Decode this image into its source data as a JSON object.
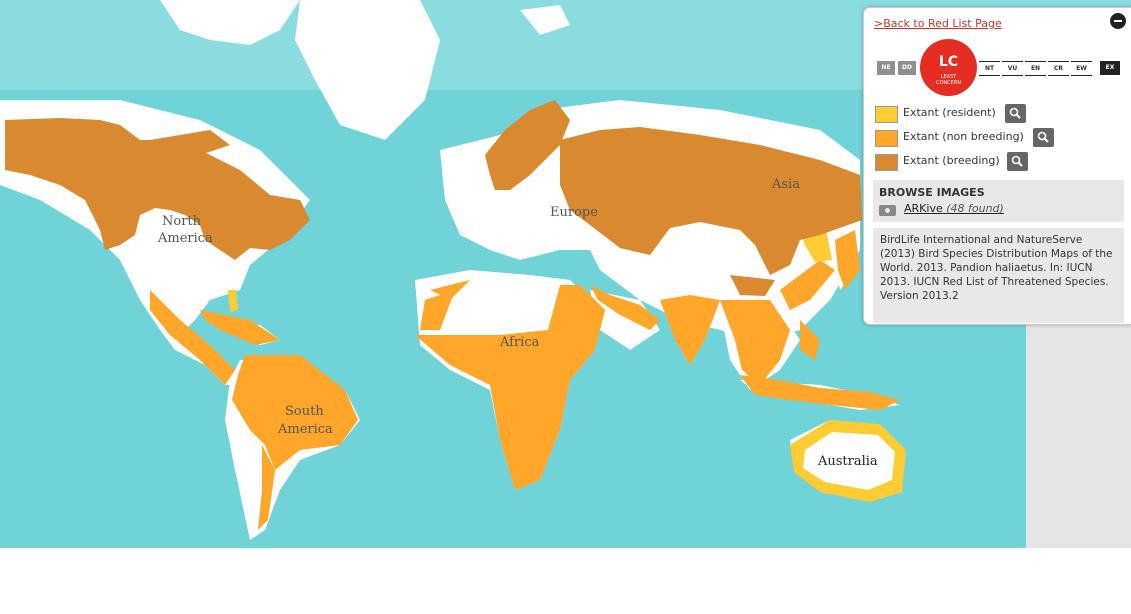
{
  "map": {
    "continent_labels": {
      "north_america_line1": "North",
      "north_america_line2": "America",
      "south_america_line1": "South",
      "south_america_line2": "America",
      "europe": "Europe",
      "asia": "Asia",
      "africa": "Africa",
      "australia": "Australia"
    },
    "colors": {
      "ocean": "#6fd3d8",
      "ocean_light": "#9fe3e4",
      "land": "#ffffff",
      "extant_resident": "#ffcc33",
      "extant_non_breeding": "#ffa62b",
      "extant_breeding": "#d98a30"
    }
  },
  "panel": {
    "back_link": ">Back to Red List Page",
    "status": {
      "categories_left": [
        "NE",
        "DD"
      ],
      "current_code": "LC",
      "current_name": "LEAST CONCERN",
      "categories_right": [
        "NT",
        "VU",
        "EN",
        "CR",
        "EW",
        "EX"
      ]
    },
    "legend": [
      {
        "label": "Extant (resident)",
        "color": "#ffcc33"
      },
      {
        "label": "Extant (non breeding)",
        "color": "#ffa62b"
      },
      {
        "label": "Extant (breeding)",
        "color": "#d98a30"
      }
    ],
    "browse_images": {
      "title": "BROWSE IMAGES",
      "source": "ARKive",
      "count": "(48 found)"
    },
    "citation": "BirdLife International and NatureServe (2013) Bird Species Distribution Maps of the World. 2013. Pandion haliaetus. In: IUCN 2013. IUCN Red List of Threatened Species. Version 2013.2"
  }
}
